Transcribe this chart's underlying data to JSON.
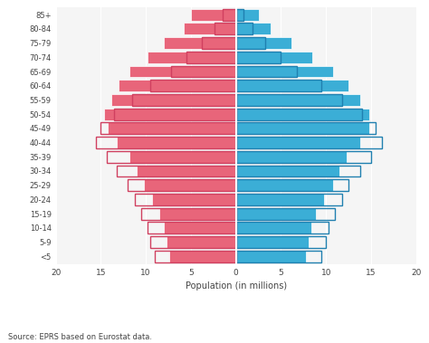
{
  "age_groups": [
    "<5",
    "5-9",
    "10-14",
    "15-19",
    "20-24",
    "25-29",
    "30-34",
    "35-39",
    "40-44",
    "45-49",
    "50-54",
    "55-59",
    "60-64",
    "65-69",
    "70-74",
    "75-79",
    "80-84",
    "85+"
  ],
  "females_2017": [
    7.4,
    7.7,
    8.0,
    8.5,
    9.3,
    10.2,
    11.0,
    11.8,
    13.2,
    14.2,
    14.6,
    13.8,
    13.0,
    11.8,
    9.8,
    8.0,
    5.8,
    5.0
  ],
  "females_2001": [
    9.0,
    9.5,
    9.8,
    10.5,
    11.2,
    12.0,
    13.2,
    14.3,
    15.5,
    15.0,
    13.5,
    11.5,
    9.5,
    7.2,
    5.5,
    3.8,
    2.4,
    1.5
  ],
  "males_2017": [
    7.8,
    8.1,
    8.4,
    8.9,
    9.8,
    10.8,
    11.5,
    12.3,
    13.8,
    14.8,
    14.8,
    13.8,
    12.5,
    10.8,
    8.5,
    6.2,
    3.8,
    2.5
  ],
  "males_2001": [
    9.5,
    10.0,
    10.3,
    11.0,
    11.8,
    12.5,
    13.8,
    15.0,
    16.2,
    15.5,
    14.0,
    11.8,
    9.5,
    6.8,
    5.0,
    3.2,
    1.8,
    0.8
  ],
  "color_females_2017": "#E8657A",
  "color_females_2001_edge": "#D04060",
  "color_males_2017": "#3BAED6",
  "color_males_2001_edge": "#2080B0",
  "xlabel": "Population (in millions)",
  "xlim": 20,
  "source_text": "Source: EPRS based on Eurostat data.",
  "bg_color": "#f5f5f5"
}
